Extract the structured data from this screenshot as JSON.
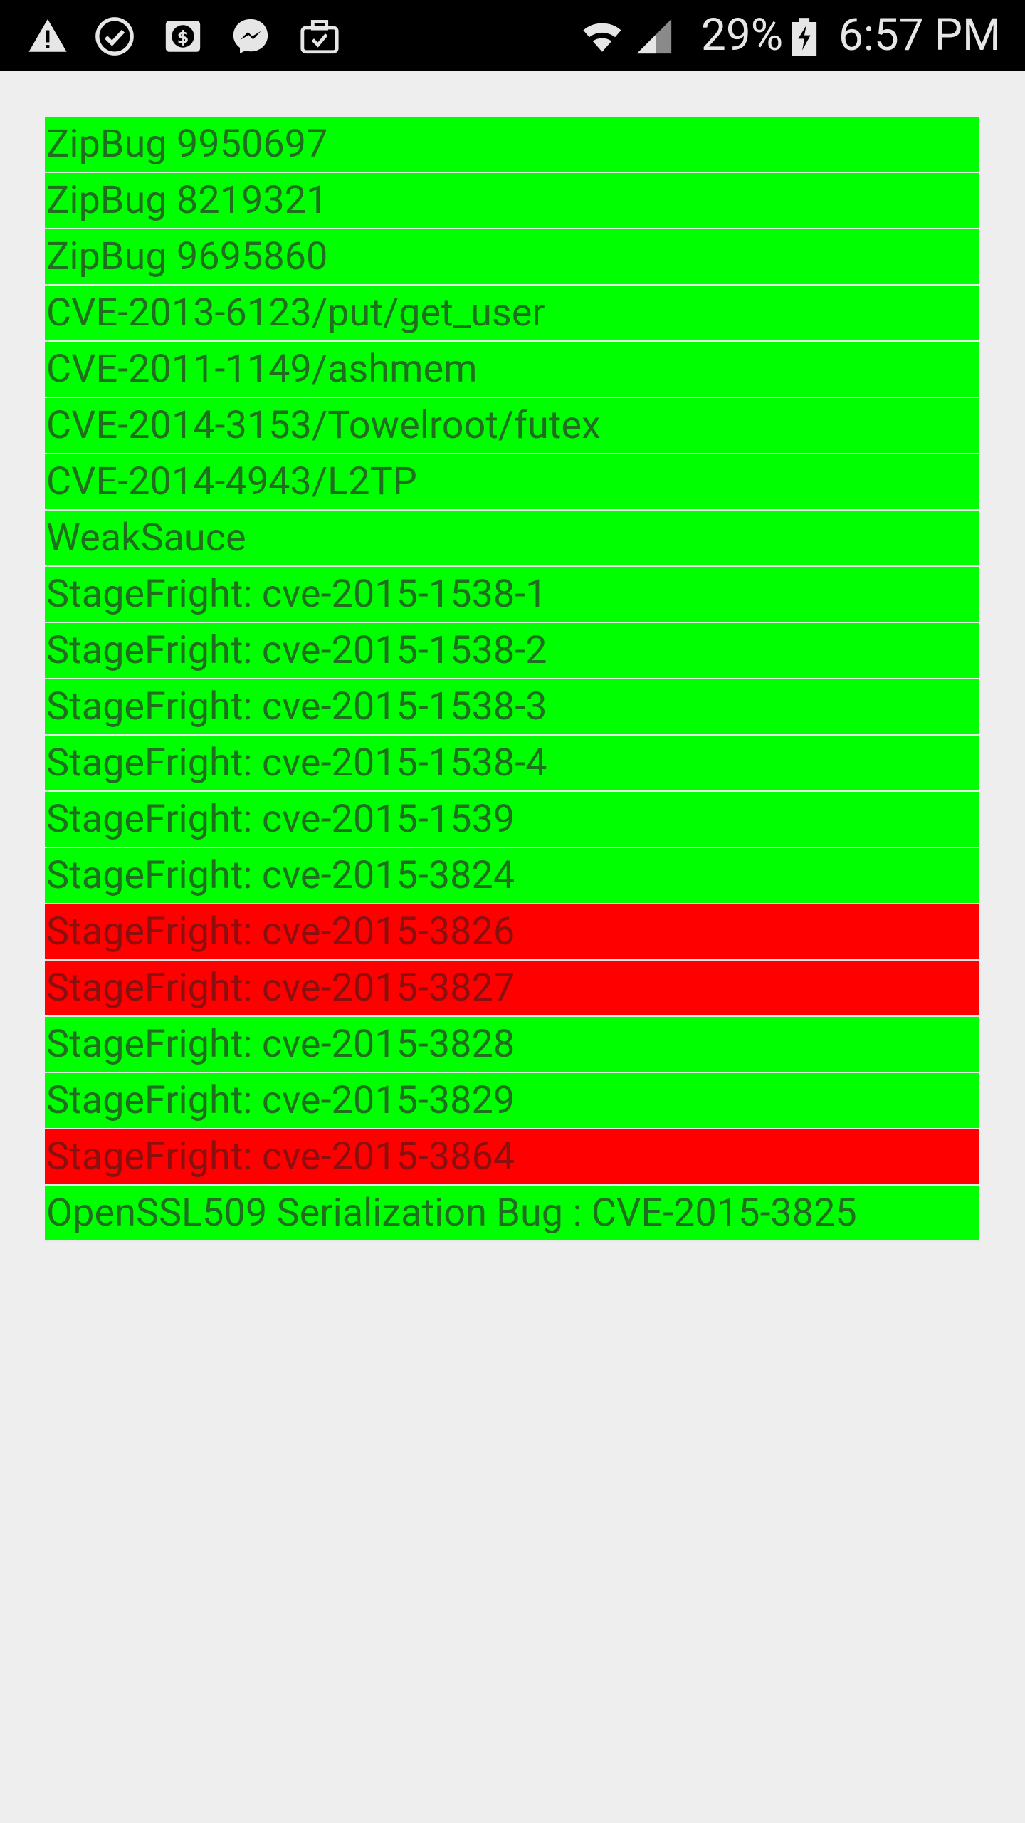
{
  "status_bar": {
    "battery_percent": "29%",
    "time": "6:57 PM",
    "left_icons": [
      "warning-icon",
      "check-circle-icon",
      "dollar-icon",
      "messenger-icon",
      "briefcase-check-icon"
    ],
    "right_icons": [
      "wifi-icon",
      "signal-icon",
      "battery-charging-icon"
    ]
  },
  "colors": {
    "pass": "#00ff00",
    "fail": "#ff0000",
    "pass_text": "#1f6f1f",
    "fail_text": "#8a0f0f",
    "background": "#eeeeee"
  },
  "tests": [
    {
      "label": "ZipBug 9950697",
      "status": "pass"
    },
    {
      "label": "ZipBug 8219321",
      "status": "pass"
    },
    {
      "label": "ZipBug 9695860",
      "status": "pass"
    },
    {
      "label": "CVE-2013-6123/put/get_user",
      "status": "pass"
    },
    {
      "label": "CVE-2011-1149/ashmem",
      "status": "pass"
    },
    {
      "label": "CVE-2014-3153/Towelroot/futex",
      "status": "pass"
    },
    {
      "label": "CVE-2014-4943/L2TP",
      "status": "pass"
    },
    {
      "label": "WeakSauce",
      "status": "pass"
    },
    {
      "label": "StageFright: cve-2015-1538-1",
      "status": "pass"
    },
    {
      "label": "StageFright: cve-2015-1538-2",
      "status": "pass"
    },
    {
      "label": "StageFright: cve-2015-1538-3",
      "status": "pass"
    },
    {
      "label": "StageFright: cve-2015-1538-4",
      "status": "pass"
    },
    {
      "label": "StageFright: cve-2015-1539",
      "status": "pass"
    },
    {
      "label": "StageFright: cve-2015-3824",
      "status": "pass"
    },
    {
      "label": "StageFright: cve-2015-3826",
      "status": "fail"
    },
    {
      "label": "StageFright: cve-2015-3827",
      "status": "fail"
    },
    {
      "label": "StageFright: cve-2015-3828",
      "status": "pass"
    },
    {
      "label": "StageFright: cve-2015-3829",
      "status": "pass"
    },
    {
      "label": "StageFright: cve-2015-3864",
      "status": "fail"
    },
    {
      "label": "OpenSSL509 Serialization Bug : CVE-2015-3825",
      "status": "pass"
    }
  ]
}
